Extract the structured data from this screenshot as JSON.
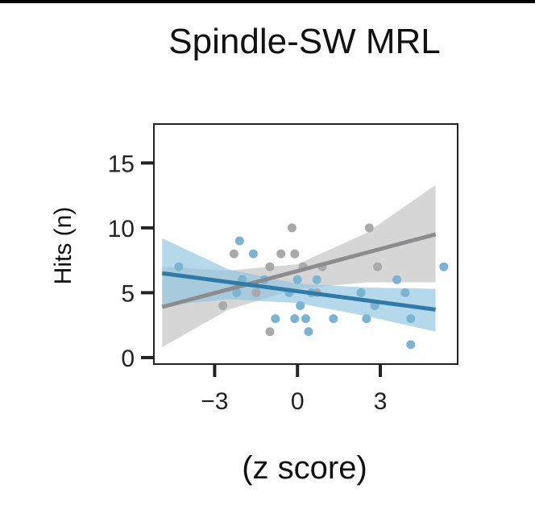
{
  "chart_data": {
    "type": "scatter",
    "title": "Spindle-SW MRL",
    "xlabel": "(z score)",
    "ylabel": "Hits (n)",
    "xlim": [
      -5.2,
      5.8
    ],
    "ylim": [
      -0.5,
      18
    ],
    "xticks": [
      -3,
      0,
      3
    ],
    "xtick_labels": [
      "−3",
      "0",
      "3"
    ],
    "yticks": [
      0,
      5,
      10,
      15
    ],
    "ytick_labels": [
      "0",
      "5",
      "10",
      "15"
    ],
    "grid": false,
    "legend": "none",
    "series": [
      {
        "color": "#a9a9ab",
        "line_color": "#8c8c8e",
        "band_color": "#c8c8ca",
        "points": [
          {
            "x": -2.7,
            "y": 4
          },
          {
            "x": -2.3,
            "y": 8
          },
          {
            "x": -2.0,
            "y": 6
          },
          {
            "x": -1.5,
            "y": 5
          },
          {
            "x": -1.0,
            "y": 7
          },
          {
            "x": -0.6,
            "y": 8
          },
          {
            "x": -0.2,
            "y": 10
          },
          {
            "x": -0.1,
            "y": 8
          },
          {
            "x": 0.2,
            "y": 7
          },
          {
            "x": -1.0,
            "y": 2
          },
          {
            "x": 0.7,
            "y": 5
          },
          {
            "x": 0.9,
            "y": 7
          },
          {
            "x": 2.6,
            "y": 10
          },
          {
            "x": 2.9,
            "y": 7
          }
        ],
        "fit": {
          "x": [
            -4.9,
            5.0
          ],
          "y": [
            3.9,
            9.5
          ]
        },
        "ci_upper": {
          "x": [
            -4.9,
            -2.5,
            0.0,
            2.5,
            5.0
          ],
          "y": [
            7.0,
            6.7,
            7.2,
            9.6,
            13.3
          ]
        },
        "ci_lower": {
          "x": [
            -4.9,
            -2.5,
            0.0,
            2.5,
            5.0
          ],
          "y": [
            0.8,
            3.7,
            5.3,
            5.8,
            5.8
          ]
        }
      },
      {
        "color": "#7ab4d2",
        "line_color": "#2f7aa6",
        "band_color": "#8ec3df",
        "points": [
          {
            "x": -4.3,
            "y": 7
          },
          {
            "x": -2.1,
            "y": 9
          },
          {
            "x": -1.6,
            "y": 8
          },
          {
            "x": -2.0,
            "y": 6
          },
          {
            "x": -2.2,
            "y": 5
          },
          {
            "x": -1.2,
            "y": 6
          },
          {
            "x": -0.8,
            "y": 3
          },
          {
            "x": -0.3,
            "y": 5
          },
          {
            "x": 0.0,
            "y": 6
          },
          {
            "x": -0.1,
            "y": 3
          },
          {
            "x": 0.1,
            "y": 4
          },
          {
            "x": 0.3,
            "y": 3
          },
          {
            "x": 0.4,
            "y": 2
          },
          {
            "x": 0.5,
            "y": 5
          },
          {
            "x": 0.7,
            "y": 6
          },
          {
            "x": 1.3,
            "y": 3
          },
          {
            "x": 2.3,
            "y": 5
          },
          {
            "x": 2.5,
            "y": 3
          },
          {
            "x": 2.8,
            "y": 4
          },
          {
            "x": 3.6,
            "y": 6
          },
          {
            "x": 3.9,
            "y": 5
          },
          {
            "x": 4.1,
            "y": 3
          },
          {
            "x": 4.1,
            "y": 1
          },
          {
            "x": 5.3,
            "y": 7
          }
        ],
        "fit": {
          "x": [
            -4.9,
            5.0
          ],
          "y": [
            6.5,
            3.7
          ]
        },
        "ci_upper": {
          "x": [
            -4.9,
            -2.5,
            0.0,
            2.5,
            5.0
          ],
          "y": [
            9.2,
            6.8,
            5.7,
            5.4,
            5.3
          ]
        },
        "ci_lower": {
          "x": [
            -4.9,
            -2.5,
            0.0,
            2.5,
            5.0
          ],
          "y": [
            4.0,
            4.5,
            4.2,
            3.2,
            2.0
          ]
        }
      }
    ]
  }
}
